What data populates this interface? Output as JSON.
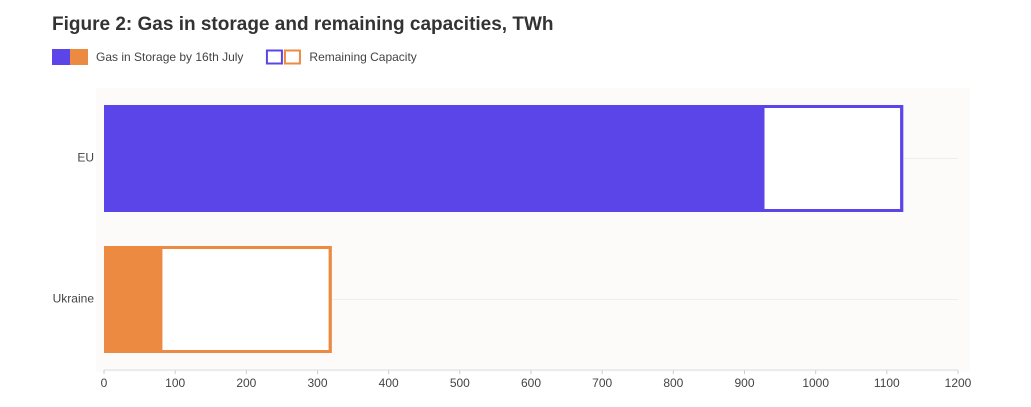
{
  "chart_data": {
    "type": "stacked-bar-horizontal",
    "title": "Figure 2: Gas in storage and remaining capacities, TWh",
    "categories": [
      "EU",
      "Ukraine"
    ],
    "category_colors": [
      "#5b45e8",
      "#eb8a40"
    ],
    "series": [
      {
        "name": "Gas in Storage by 16th July",
        "values": [
          926,
          80
        ]
      },
      {
        "name": "Remaining Capacity",
        "values": [
          197,
          240
        ]
      }
    ],
    "xlim": [
      0,
      1200
    ],
    "xticks": [
      0,
      100,
      200,
      300,
      400,
      500,
      600,
      700,
      800,
      900,
      1000,
      1100,
      1200
    ],
    "grid": true
  }
}
